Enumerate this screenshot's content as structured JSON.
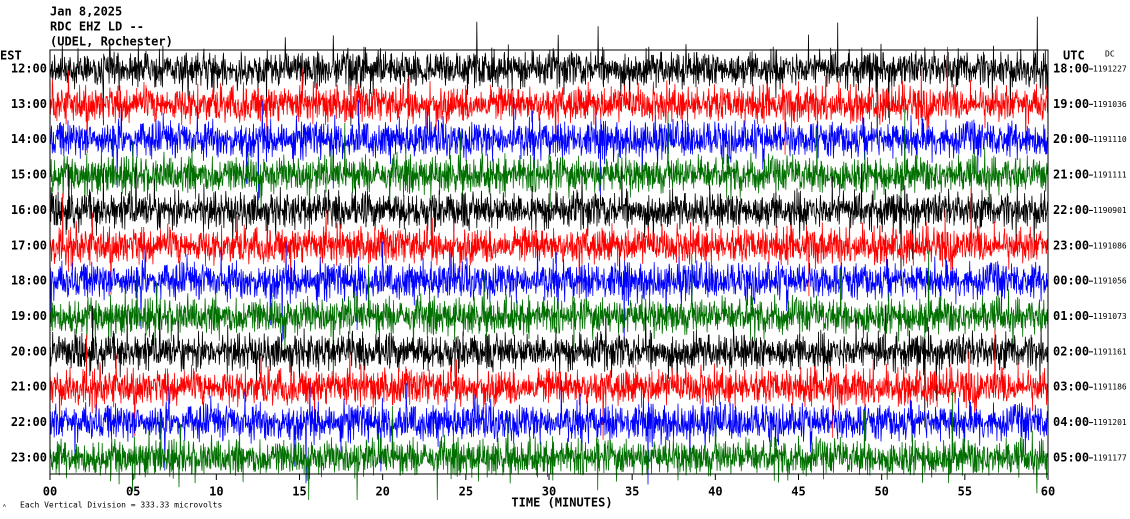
{
  "chart_data": {
    "type": "helicorder",
    "title": "Jan 8,2025",
    "subtitle": "RDC EHZ LD --",
    "station": "(UDEL, Rochester)",
    "left_axis_label": "EST",
    "right_axis_label": "UTC",
    "dc_label": "DC",
    "x_label": "TIME (MINUTES)",
    "scale_note": "Each Vertical Division = 333.33 microvolts",
    "xlim": [
      0,
      60
    ],
    "xticks": [
      {
        "value": 0,
        "label": "00"
      },
      {
        "value": 5,
        "label": "05"
      },
      10,
      15,
      20,
      25,
      30,
      35,
      40,
      45,
      50,
      55,
      60
    ],
    "rows": [
      {
        "est": "12:00",
        "utc": "18:00",
        "dc": 1191227,
        "color": "#000000"
      },
      {
        "est": "13:00",
        "utc": "19:00",
        "dc": 1191036,
        "color": "#ff0000"
      },
      {
        "est": "14:00",
        "utc": "20:00",
        "dc": 1191110,
        "color": "#0000ff"
      },
      {
        "est": "15:00",
        "utc": "21:00",
        "dc": 1191111,
        "color": "#006f00"
      },
      {
        "est": "16:00",
        "utc": "22:00",
        "dc": 1190901,
        "color": "#000000"
      },
      {
        "est": "17:00",
        "utc": "23:00",
        "dc": 1191086,
        "color": "#ff0000"
      },
      {
        "est": "18:00",
        "utc": "00:00",
        "dc": 1191056,
        "color": "#0000ff"
      },
      {
        "est": "19:00",
        "utc": "01:00",
        "dc": 1191073,
        "color": "#006f00"
      },
      {
        "est": "20:00",
        "utc": "02:00",
        "dc": 1191161,
        "color": "#000000"
      },
      {
        "est": "21:00",
        "utc": "03:00",
        "dc": 1191186,
        "color": "#ff0000"
      },
      {
        "est": "22:00",
        "utc": "04:00",
        "dc": 1191201,
        "color": "#0000ff"
      },
      {
        "est": "23:00",
        "utc": "05:00",
        "dc": 1191177,
        "color": "#006f00"
      }
    ]
  }
}
